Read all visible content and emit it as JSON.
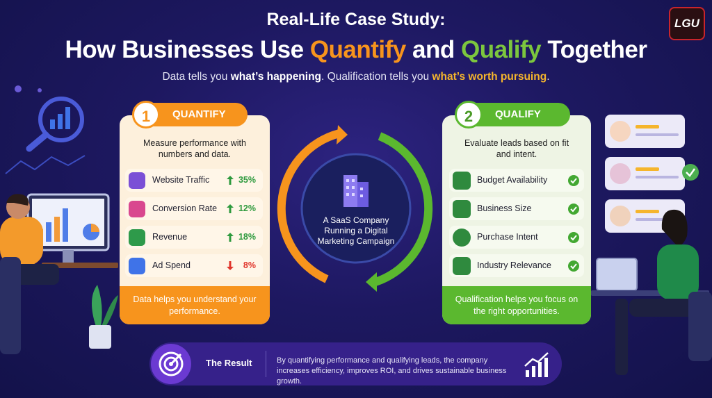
{
  "logo": "LGU",
  "header": {
    "title": "Real-Life Case Study:",
    "headline": [
      "How Businesses Use ",
      "Quantify",
      " and ",
      "Qualify",
      " Together"
    ],
    "subtitle": [
      "Data tells you ",
      "what’s happening",
      ". Qualification tells you ",
      "what’s worth pursuing",
      "."
    ]
  },
  "quantify": {
    "number": "1",
    "title": "QUANTIFY",
    "description": "Measure performance with numbers and data.",
    "metrics": [
      {
        "label": "Website Traffic",
        "change": "35%"
      },
      {
        "label": "Conversion Rate",
        "change": "12%"
      },
      {
        "label": "Revenue",
        "change": "18%"
      },
      {
        "label": "Ad Spend",
        "change": "8%"
      }
    ],
    "footer": "Data helps you understand your performance."
  },
  "center": {
    "label": "A SaaS Company Running a Digital Marketing Campaign"
  },
  "qualify": {
    "number": "2",
    "title": "QUALIFY",
    "description": "Evaluate leads based on fit and intent.",
    "criteria": [
      "Budget Availability",
      "Business Size",
      "Purchase Intent",
      "Industry Relevance"
    ],
    "footer": "Qualification helps you focus on the right opportunities."
  },
  "result": {
    "title": "The Result",
    "text": "By quantifying performance and qualifying leads, the company increases efficiency, improves ROI, and drives sustainable business growth."
  }
}
